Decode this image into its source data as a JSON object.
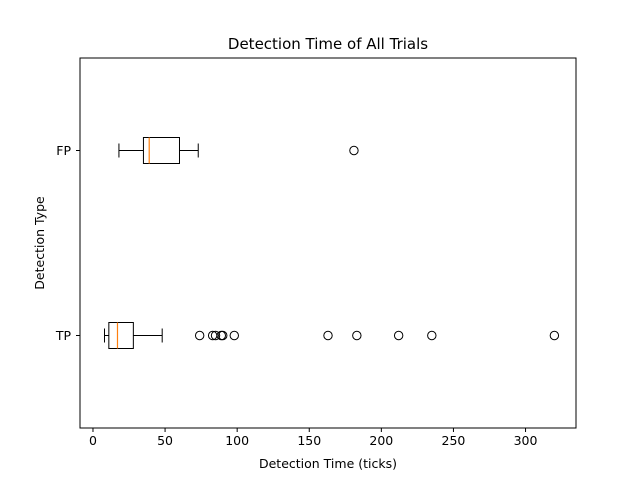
{
  "chart_data": {
    "type": "boxplot",
    "orientation": "horizontal",
    "title": "Detection Time of All Trials",
    "xlabel": "Detection Time (ticks)",
    "ylabel": "Detection Type",
    "xlim": [
      -9,
      335
    ],
    "xticks": [
      0,
      50,
      100,
      150,
      200,
      250,
      300
    ],
    "categories": [
      "TP",
      "FP"
    ],
    "grid": false,
    "colors": {
      "box": "#000000",
      "median": "#ff7f0e",
      "flier": "#000000"
    },
    "boxes": [
      {
        "category": "TP",
        "whisker_low": 8,
        "q1": 11,
        "median": 17,
        "q3": 28,
        "whisker_high": 48,
        "fliers": [
          74,
          83,
          85,
          89,
          90,
          98,
          163,
          183,
          212,
          235,
          320
        ]
      },
      {
        "category": "FP",
        "whisker_low": 18,
        "q1": 35,
        "median": 39,
        "q3": 60,
        "whisker_high": 73,
        "fliers": [
          181
        ]
      }
    ]
  }
}
